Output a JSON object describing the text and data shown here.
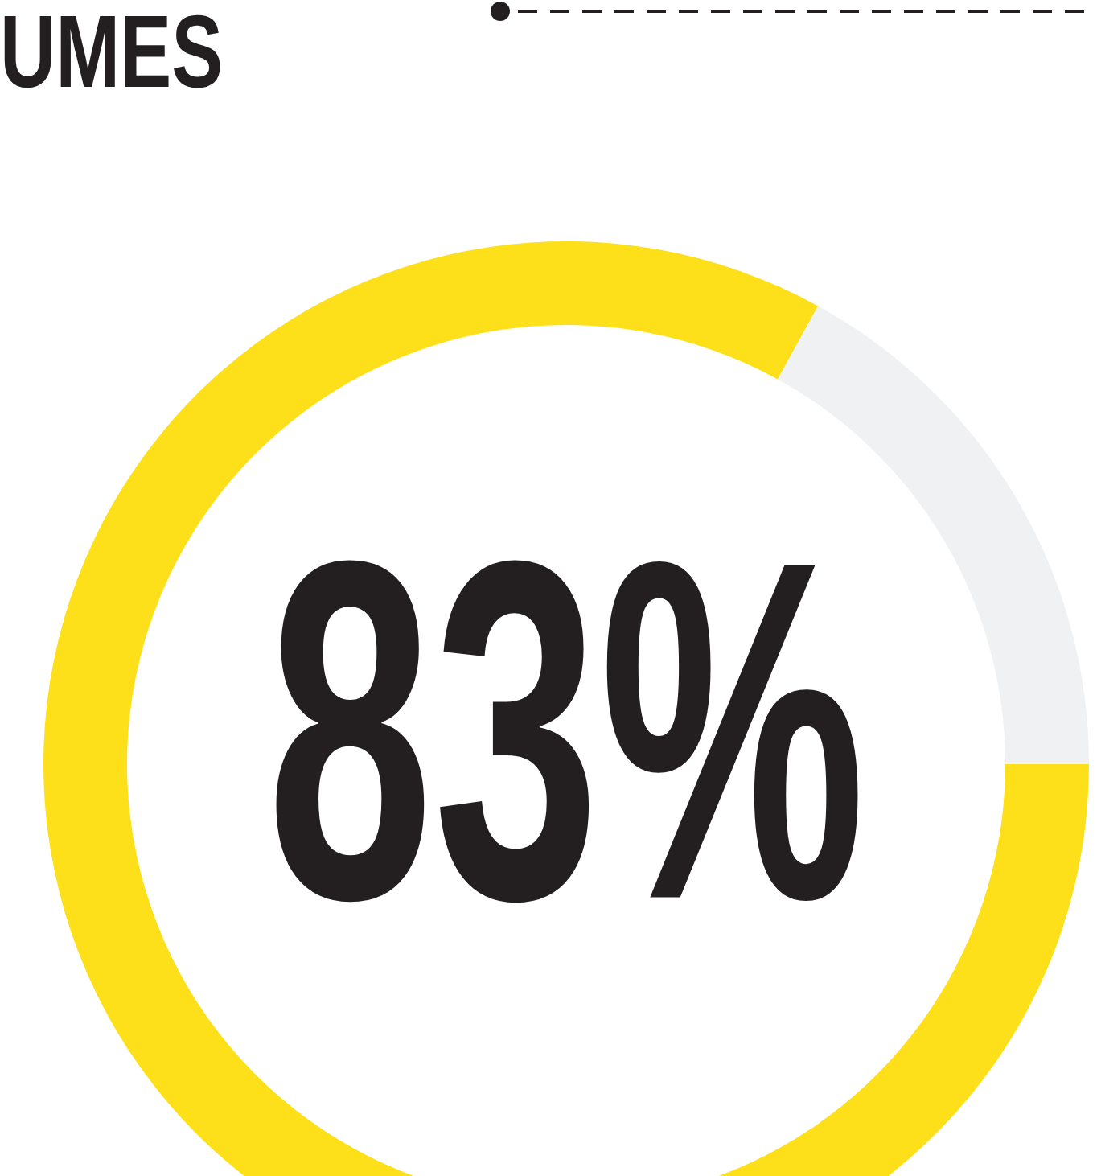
{
  "chart_data": {
    "type": "donut",
    "title": "UMES",
    "categories": [
      null,
      null
    ],
    "values": [
      83,
      17
    ],
    "colors": [
      "#fde01a",
      "#f0f1f3"
    ],
    "value_labels": [
      "83%",
      null
    ],
    "legend": false
  }
}
